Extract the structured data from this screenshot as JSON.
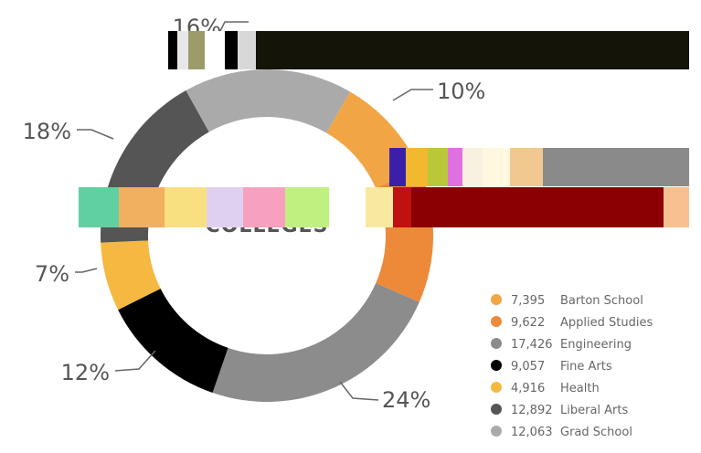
{
  "chart_data": {
    "type": "pie",
    "donut": true,
    "center_label": "COLLEGES",
    "slices": [
      {
        "name": "Barton School",
        "value": 7395,
        "display_value": "7,395",
        "percent_label": "10%",
        "color": "#f2a545"
      },
      {
        "name": "Applied Studies",
        "value": 9622,
        "display_value": "9,622",
        "percent_label": "",
        "color": "#ec8a3a"
      },
      {
        "name": "Engineering",
        "value": 17426,
        "display_value": "17,426",
        "percent_label": "24%",
        "color": "#8c8c8c"
      },
      {
        "name": "Fine Arts",
        "value": 9057,
        "display_value": "9,057",
        "percent_label": "12%",
        "color": "#000000"
      },
      {
        "name": "Health",
        "value": 4916,
        "display_value": "4,916",
        "percent_label": "7%",
        "color": "#f5b942"
      },
      {
        "name": "Liberal Arts",
        "value": 12892,
        "display_value": "12,892",
        "percent_label": "18%",
        "color": "#555555"
      },
      {
        "name": "Grad School",
        "value": 12063,
        "display_value": "12,063",
        "percent_label": "16%",
        "color": "#aaaaaa"
      }
    ],
    "legend_position": "bottom-right"
  }
}
